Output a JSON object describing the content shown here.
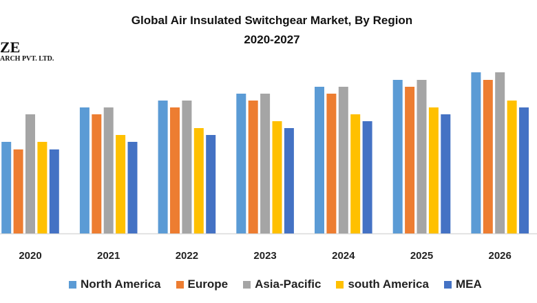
{
  "chart_data": {
    "type": "bar",
    "title": "Global Air Insulated Switchgear Market, By Region",
    "subtitle": "2020-2027",
    "xlabel": "",
    "ylabel": "",
    "ylim": [
      0,
      25
    ],
    "grid": false,
    "legend": "bottom",
    "categories": [
      "2020",
      "2021",
      "2022",
      "2023",
      "2024",
      "2025",
      "2026"
    ],
    "series": [
      {
        "name": "North America",
        "color": "#5b9bd5",
        "values": [
          13.3,
          18.3,
          19.3,
          20.3,
          21.3,
          22.3,
          23.4
        ]
      },
      {
        "name": "Europe",
        "color": "#ed7d31",
        "values": [
          12.2,
          17.3,
          18.3,
          19.3,
          20.3,
          21.3,
          22.3
        ]
      },
      {
        "name": "Asia-Pacific",
        "color": "#a5a5a5",
        "values": [
          17.3,
          18.3,
          19.3,
          20.3,
          21.3,
          22.3,
          23.4
        ]
      },
      {
        "name": "south America",
        "color": "#ffc000",
        "values": [
          13.3,
          14.3,
          15.3,
          16.3,
          17.3,
          18.3,
          19.3
        ]
      },
      {
        "name": "MEA",
        "color": "#4472c4",
        "values": [
          12.2,
          13.3,
          14.3,
          15.3,
          16.3,
          17.3,
          18.3
        ]
      }
    ]
  },
  "logo": {
    "line1": "ZE",
    "line2": "ARCH PVT. LTD."
  }
}
